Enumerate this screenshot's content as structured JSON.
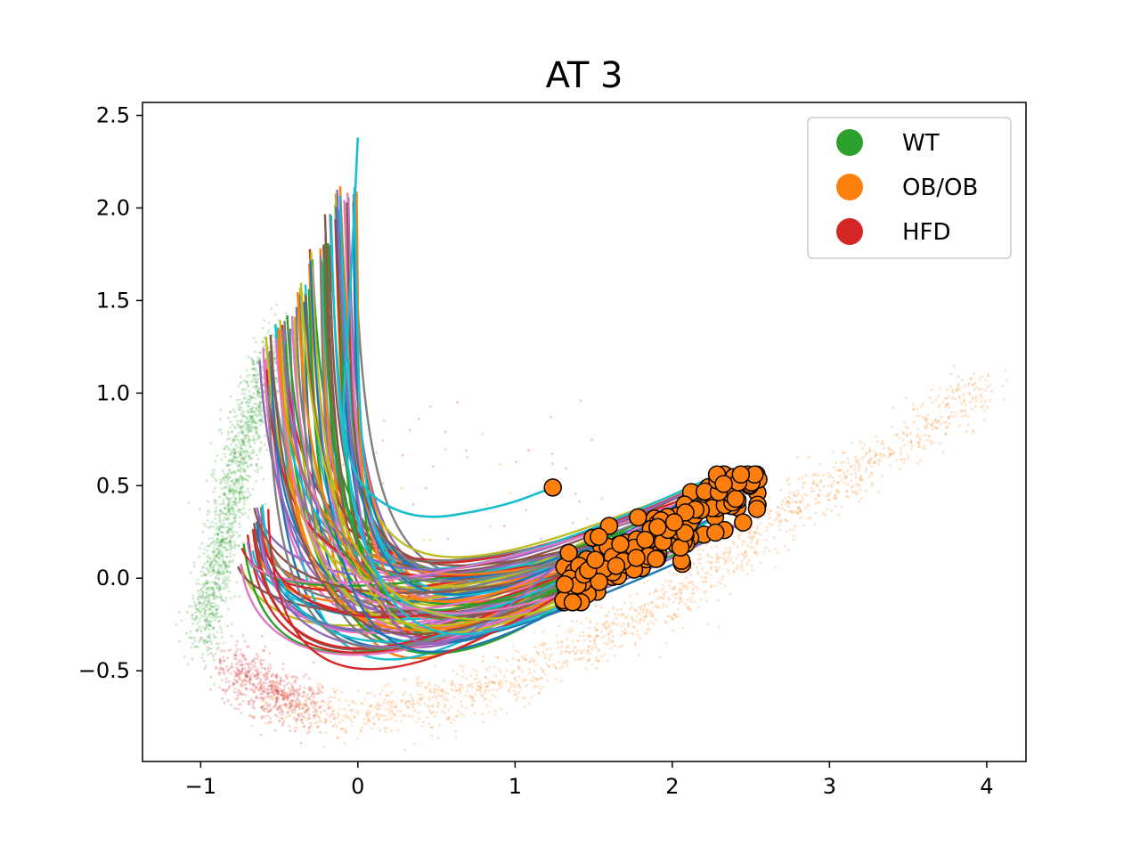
{
  "chart_data": {
    "type": "scatter",
    "title": "AT 3",
    "xlabel": "",
    "ylabel": "",
    "xlim": [
      -1.37,
      4.25
    ],
    "ylim": [
      -0.99,
      2.57
    ],
    "x_ticks": [
      -1,
      0,
      1,
      2,
      3,
      4
    ],
    "x_tick_labels": [
      "−1",
      "0",
      "1",
      "2",
      "3",
      "4"
    ],
    "y_ticks": [
      -0.5,
      0.0,
      0.5,
      1.0,
      1.5,
      2.0,
      2.5
    ],
    "y_tick_labels": [
      "−0.5",
      "0.0",
      "0.5",
      "1.0",
      "1.5",
      "2.0",
      "2.5"
    ],
    "grid": false,
    "legend": {
      "position": "top-right",
      "entries": [
        {
          "label": "WT",
          "color": "#2ca02c"
        },
        {
          "label": "OB/OB",
          "color": "#ff7f0e"
        },
        {
          "label": "HFD",
          "color": "#d62728"
        }
      ]
    },
    "background_clusters": [
      {
        "name": "WT",
        "color": "#2ca02c",
        "description_points": [
          [
            -1.0,
            -0.35
          ],
          [
            -0.85,
            0.2
          ],
          [
            -0.75,
            0.7
          ],
          [
            -0.6,
            1.1
          ],
          [
            -0.45,
            1.3
          ]
        ],
        "count": 1500
      },
      {
        "name": "OB/OB",
        "color": "#ff7f0e",
        "description_points": [
          [
            -0.6,
            -0.65
          ],
          [
            0.0,
            -0.75
          ],
          [
            1.0,
            -0.55
          ],
          [
            2.0,
            -0.1
          ],
          [
            2.8,
            0.4
          ],
          [
            3.5,
            0.75
          ],
          [
            4.0,
            1.05
          ]
        ],
        "count": 1600
      },
      {
        "name": "HFD",
        "color": "#d62728",
        "description_points": [
          [
            -0.8,
            -0.45
          ],
          [
            -0.6,
            -0.6
          ],
          [
            -0.3,
            -0.7
          ]
        ],
        "count": 600
      }
    ],
    "trajectories": {
      "count": 110,
      "start_x_range": [
        -0.3,
        -0.08
      ],
      "start_y_range": [
        1.3,
        2.0
      ],
      "end_region": "orange markers",
      "special_line": {
        "color": "#17becf",
        "points": [
          [
            0.0,
            2.38
          ],
          [
            -0.05,
            1.5
          ],
          [
            -0.12,
            0.6
          ],
          [
            0.3,
            0.3
          ],
          [
            0.9,
            0.38
          ],
          [
            1.24,
            0.49
          ]
        ]
      }
    },
    "end_markers": {
      "color": "#ff7f0e",
      "edge_color": "#000000",
      "count": 140,
      "x_range": [
        1.2,
        2.55
      ],
      "y_range": [
        -0.13,
        0.56
      ],
      "outlier": [
        1.24,
        0.49
      ]
    }
  }
}
